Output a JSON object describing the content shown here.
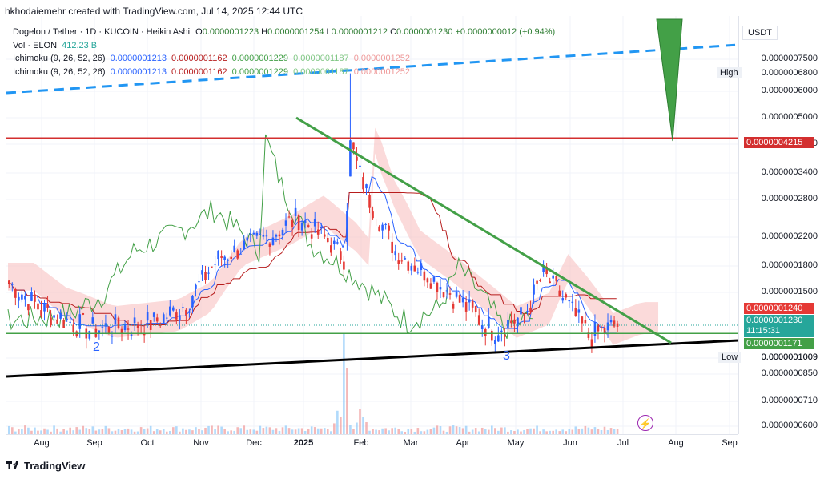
{
  "attribution": "hkhodaiemehr created with TradingView.com, Jul 14, 2025 12:44 UTC",
  "legend": {
    "symbol": "Dogelon / Tether · 1D · KUCOIN · Heikin Ashi",
    "ohlc": {
      "o_label": "O",
      "o": "0.0000001223",
      "h_label": "H",
      "h": "0.0000001254",
      "l_label": "L",
      "l": "0.0000001212",
      "c_label": "C",
      "c": "0.0000001230",
      "change": "+0.0000000012 (+0.94%)"
    },
    "vol_label": "Vol · ELON",
    "vol": "412.23 B",
    "ichimoku": [
      {
        "label": "Ichimoku (9, 26, 52, 26)",
        "v1": "0.0000001213",
        "v2": "0.0000001162",
        "v3": "0.0000001229",
        "v4": "0.0000001187",
        "v5": "0.0000001252"
      },
      {
        "label": "Ichimoku (9, 26, 52, 26)",
        "v1": "0.0000001213",
        "v2": "0.0000001162",
        "v3": "0.0000001229",
        "v4": "0.0000001187",
        "v5": "0.0000001252"
      }
    ]
  },
  "currency": "USDT",
  "colors": {
    "up": "#2962ff",
    "down": "#e53935",
    "green": "#43a047",
    "red_line": "#d32f2f",
    "cloud_red": "#f8bcbc",
    "cloud_green": "#c8e6c9",
    "blue_dash": "#2196f3"
  },
  "chart_data": {
    "type": "candlestick",
    "price_scale": "log",
    "y_ticks": [
      "0.0000007500",
      "0.0000006000",
      "0.0000005000",
      "0.0000004000",
      "0.0000003400",
      "0.0000002800",
      "0.0000002200",
      "0.0000001800",
      "0.0000001500",
      "0.0000001009",
      "0.0000000850",
      "0.0000000710",
      "0.0000000600"
    ],
    "y_values": [
      7.5e-07,
      6e-07,
      5e-07,
      4e-07,
      3.4e-07,
      2.8e-07,
      2.2e-07,
      1.8e-07,
      1.5e-07,
      1.009e-07,
      8.5e-08,
      7.1e-08,
      6e-08
    ],
    "x_ticks": [
      "Aug",
      "Sep",
      "Oct",
      "Nov",
      "Dec",
      "2025",
      "Feb",
      "Mar",
      "Apr",
      "May",
      "Jun",
      "Jul",
      "Aug",
      "Sep"
    ],
    "price_labels": {
      "high_label": "High",
      "high": "0.0000006800",
      "resistance": "0.0000004215",
      "ichimoku_tag": "0.0000001240",
      "last": "0.0000001230",
      "countdown": "11:15:31",
      "support": "0.0000001171",
      "low_label": "Low",
      "low": "0.0000001009"
    },
    "levels": {
      "resistance": 4.215e-07,
      "support": 1.171e-07,
      "high": 6.8e-07,
      "low": 1.009e-07,
      "last": 1.23e-07
    },
    "wave_labels": [
      "2",
      "3"
    ],
    "volume_label": "Vol"
  },
  "footer": {
    "logo_text": "TradingView"
  }
}
